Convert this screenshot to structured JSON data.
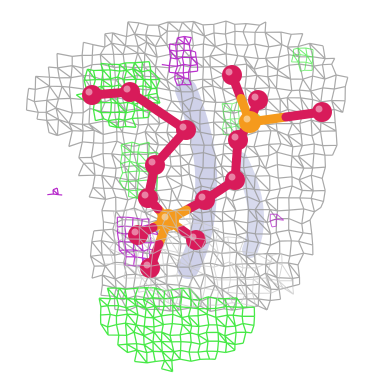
{
  "scene": {
    "background_color": "#ffffff",
    "colors": {
      "density_mesh": "#9a9a9a",
      "density_mesh_light": "#c4c4c4",
      "positive_difference_mesh": "#3de83d",
      "negative_difference_mesh": "#b21cc8",
      "oxygen_atoms": "#d81b5a",
      "phosphorus_atoms": "#f59a1d",
      "protein_cartoon": "#a8acd8"
    },
    "icons": [
      "electron-density-mesh",
      "ball-and-stick-ligand",
      "protein-ribbon"
    ]
  }
}
